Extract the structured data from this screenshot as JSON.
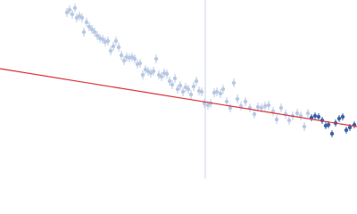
{
  "chart_data": {
    "type": "scatter",
    "xlim": [
      0,
      400
    ],
    "ylim": [
      0,
      200
    ],
    "vline": 230,
    "vline_color": "#c9d3ea",
    "series": [
      {
        "color": "#b8c8e4",
        "x": [
          75,
          78,
          81,
          84,
          86,
          89,
          92,
          94,
          97,
          100,
          103,
          106,
          109,
          112,
          115,
          118,
          121,
          124,
          127,
          130,
          133,
          136,
          139,
          142,
          145,
          148,
          151,
          154,
          157,
          160,
          163,
          166,
          169,
          172,
          175,
          178,
          181,
          184,
          187,
          190,
          193,
          196,
          199,
          202,
          205,
          208,
          211,
          214,
          217,
          220,
          223,
          226,
          229,
          233,
          236,
          240,
          243,
          247,
          250,
          254,
          258,
          262,
          266,
          270,
          275,
          280,
          285,
          289,
          293,
          297,
          301,
          306,
          310,
          315,
          320,
          324,
          328,
          333,
          337,
          341,
          345
        ],
        "values": [
          186,
          189,
          184,
          191,
          180,
          182,
          180,
          164,
          175,
          170,
          167,
          164,
          160,
          157,
          156,
          153,
          154,
          143,
          148,
          154,
          147,
          138,
          132,
          136,
          135,
          136,
          134,
          128,
          129,
          116,
          122,
          120,
          118,
          120,
          134,
          116,
          114,
          118,
          117,
          109,
          105,
          112,
          100,
          104,
          97,
          102,
          100,
          94,
          103,
          109,
          98,
          97,
          84,
          82,
          84,
          96,
          97,
          95,
          100,
          86,
          79,
          107,
          89,
          81,
          86,
          79,
          72,
          80,
          79,
          81,
          82,
          75,
          66,
          79,
          72,
          65,
          70,
          73,
          70,
          58,
          73
        ],
        "errors": [
          5,
          5,
          5,
          5,
          5,
          5,
          5,
          5,
          5,
          5,
          5,
          5,
          5,
          5,
          5,
          5,
          5,
          5,
          5,
          5,
          5,
          5,
          5,
          5,
          5,
          5,
          5,
          5,
          5,
          5,
          5,
          5,
          5,
          5,
          5,
          5,
          5,
          5,
          5,
          5,
          5,
          5,
          5,
          5,
          5,
          5,
          5,
          5,
          5,
          5,
          5,
          5,
          5,
          5,
          5,
          5,
          5,
          5,
          5,
          5,
          5,
          5,
          5,
          5,
          5,
          5,
          5,
          5,
          5,
          5,
          5,
          5,
          5,
          5,
          5,
          5,
          5,
          5,
          5,
          5,
          5
        ]
      },
      {
        "color": "#3a62a8",
        "x": [
          349,
          353,
          357,
          361,
          365,
          368,
          372,
          376,
          380,
          384,
          388,
          392,
          397
        ],
        "values": [
          68,
          70,
          69,
          65,
          59,
          60,
          50,
          62,
          67,
          69,
          54,
          57,
          60
        ],
        "errors": [
          4,
          4,
          4,
          4,
          4,
          4,
          4,
          4,
          4,
          4,
          4,
          4,
          4
        ]
      },
      {
        "type": "line",
        "color": "#d9313a",
        "x": [
          0,
          400
        ],
        "values": [
          123,
          58
        ]
      }
    ]
  }
}
